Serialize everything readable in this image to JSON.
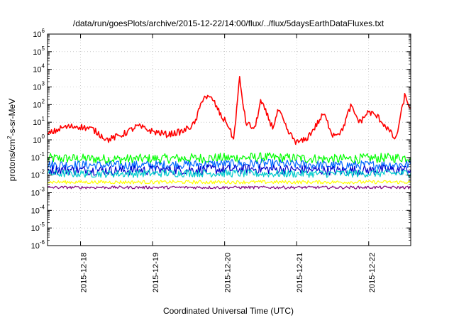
{
  "chart_data": {
    "type": "line",
    "title": "/data/run/goesPlots/archive/2015-12-22/14:00/flux/../flux/5daysEarthDataFluxes.txt",
    "xlabel": "Coordinated Universal Time (UTC)",
    "ylabel_base": "protons/cm",
    "ylabel_sup": "2",
    "ylabel_rest": "-s-sr-MeV",
    "y_scale": "log",
    "ylim": [
      1e-06,
      1000000.0
    ],
    "y_ticks": [
      {
        "base": "10",
        "exp": "-6"
      },
      {
        "base": "10",
        "exp": "-5"
      },
      {
        "base": "10",
        "exp": "-4"
      },
      {
        "base": "10",
        "exp": "-3"
      },
      {
        "base": "10",
        "exp": "-2"
      },
      {
        "base": "10",
        "exp": "-1"
      },
      {
        "base": "10",
        "exp": "0"
      },
      {
        "base": "10",
        "exp": "1"
      },
      {
        "base": "10",
        "exp": "2"
      },
      {
        "base": "10",
        "exp": "3"
      },
      {
        "base": "10",
        "exp": "4"
      },
      {
        "base": "10",
        "exp": "5"
      },
      {
        "base": "10",
        "exp": "6"
      }
    ],
    "xlim": [
      "2015-12-17 13:00",
      "2015-12-22 14:00"
    ],
    "x_ticks": [
      "2015-12-18",
      "2015-12-19",
      "2015-12-20",
      "2015-12-21",
      "2015-12-22"
    ],
    "grid": true,
    "legend": "none",
    "series": [
      {
        "color": "#ff0000",
        "x": [
          "2015-12-17 13:00",
          "2015-12-17 18:00",
          "2015-12-17 23:00",
          "2015-12-18 04:00",
          "2015-12-18 09:00",
          "2015-12-18 14:00",
          "2015-12-18 19:00",
          "2015-12-19 00:00",
          "2015-12-19 05:00",
          "2015-12-19 10:00",
          "2015-12-19 14:00",
          "2015-12-19 17:00",
          "2015-12-19 20:00",
          "2015-12-19 23:00",
          "2015-12-20 01:00",
          "2015-12-20 03:00",
          "2015-12-20 05:00",
          "2015-12-20 07:00",
          "2015-12-20 10:00",
          "2015-12-20 12:00",
          "2015-12-20 14:00",
          "2015-12-20 16:00",
          "2015-12-20 18:00",
          "2015-12-20 21:00",
          "2015-12-21 00:00",
          "2015-12-21 03:00",
          "2015-12-21 06:00",
          "2015-12-21 09:00",
          "2015-12-21 12:00",
          "2015-12-21 15:00",
          "2015-12-21 18:00",
          "2015-12-21 21:00",
          "2015-12-22 00:00",
          "2015-12-22 03:00",
          "2015-12-22 06:00",
          "2015-12-22 09:00",
          "2015-12-22 12:00",
          "2015-12-22 14:00"
        ],
        "values": [
          2,
          5,
          6,
          4,
          1,
          2,
          6,
          3,
          2,
          3,
          8,
          300,
          200,
          20,
          8,
          1,
          3000,
          10,
          4,
          150,
          30,
          5,
          50,
          3,
          0.7,
          1,
          5,
          30,
          2,
          3,
          80,
          10,
          40,
          20,
          5,
          1,
          300,
          60
        ]
      },
      {
        "color": "#00ff00",
        "x": [
          "2015-12-17 13:00",
          "2015-12-18 13:00",
          "2015-12-19 13:00",
          "2015-12-20 13:00",
          "2015-12-21 13:00",
          "2015-12-22 14:00"
        ],
        "values": [
          0.09,
          0.08,
          0.09,
          0.1,
          0.08,
          0.1
        ]
      },
      {
        "color": "#0066ff",
        "x": [
          "2015-12-17 13:00",
          "2015-12-18 13:00",
          "2015-12-19 13:00",
          "2015-12-20 13:00",
          "2015-12-21 13:00",
          "2015-12-22 14:00"
        ],
        "values": [
          0.04,
          0.035,
          0.04,
          0.045,
          0.035,
          0.04
        ]
      },
      {
        "color": "#00cccc",
        "x": [
          "2015-12-17 13:00",
          "2015-12-18 13:00",
          "2015-12-19 13:00",
          "2015-12-20 13:00",
          "2015-12-21 13:00",
          "2015-12-22 14:00"
        ],
        "values": [
          0.012,
          0.012,
          0.013,
          0.012,
          0.012,
          0.013
        ]
      },
      {
        "color": "#0000cc",
        "x": [
          "2015-12-17 13:00",
          "2015-12-18 13:00",
          "2015-12-19 13:00",
          "2015-12-20 13:00",
          "2015-12-21 13:00",
          "2015-12-22 14:00"
        ],
        "values": [
          0.02,
          0.018,
          0.02,
          0.022,
          0.018,
          0.02
        ]
      },
      {
        "color": "#ffff00",
        "x": [
          "2015-12-17 13:00",
          "2015-12-18 13:00",
          "2015-12-19 13:00",
          "2015-12-20 13:00",
          "2015-12-21 13:00",
          "2015-12-22 14:00"
        ],
        "values": [
          0.004,
          0.004,
          0.004,
          0.004,
          0.004,
          0.004
        ]
      },
      {
        "color": "#800080",
        "x": [
          "2015-12-17 13:00",
          "2015-12-18 13:00",
          "2015-12-19 13:00",
          "2015-12-20 13:00",
          "2015-12-21 13:00",
          "2015-12-22 14:00"
        ],
        "values": [
          0.002,
          0.002,
          0.002,
          0.002,
          0.002,
          0.002
        ]
      }
    ]
  }
}
